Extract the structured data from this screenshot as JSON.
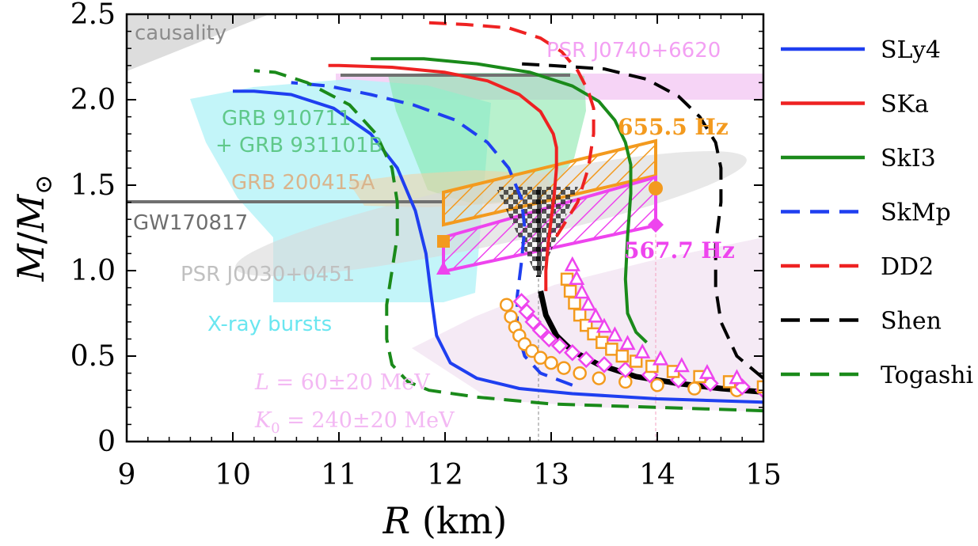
{
  "chart_data": {
    "type": "line",
    "xlabel": {
      "italic": "R",
      "rest": " (km)"
    },
    "ylabel": {
      "M": "M",
      "slash": "/",
      "sub": "⊙"
    },
    "xlim": [
      9,
      15
    ],
    "ylim": [
      0,
      2.5
    ],
    "xticks": [
      "9",
      "10",
      "11",
      "12",
      "13",
      "14",
      "15"
    ],
    "yticks": [
      "0",
      "0.5",
      "1.0",
      "1.5",
      "2.0",
      "2.5"
    ],
    "series": [
      {
        "name": "SLy4",
        "color": "#1f3ff0",
        "dash": "solid",
        "x": [
          15.0,
          14.0,
          13.2,
          12.7,
          12.3,
          12.05,
          11.92,
          11.87,
          11.82,
          11.72,
          11.55,
          11.3,
          10.95,
          10.55,
          10.2,
          10.05,
          10.0
        ],
        "y": [
          0.23,
          0.25,
          0.28,
          0.31,
          0.37,
          0.46,
          0.62,
          0.85,
          1.1,
          1.35,
          1.6,
          1.8,
          1.95,
          2.03,
          2.05,
          2.05,
          2.05
        ]
      },
      {
        "name": "SKa",
        "color": "#ee2222",
        "dash": "solid",
        "x": [
          12.95,
          12.95,
          12.97,
          13.0,
          13.03,
          13.05,
          13.05,
          13.02,
          12.9,
          12.7,
          12.4,
          12.0,
          11.5,
          11.0,
          10.9
        ],
        "y": [
          0.88,
          1.0,
          1.15,
          1.3,
          1.45,
          1.6,
          1.72,
          1.8,
          1.93,
          2.03,
          2.11,
          2.16,
          2.19,
          2.2,
          2.2
        ]
      },
      {
        "name": "SkI3",
        "color": "#1a8a1a",
        "dash": "solid",
        "x": [
          13.9,
          13.8,
          13.72,
          13.7,
          13.72,
          13.75,
          13.75,
          13.7,
          13.6,
          13.45,
          13.2,
          12.8,
          12.3,
          11.8,
          11.3
        ],
        "y": [
          0.58,
          0.64,
          0.75,
          0.95,
          1.2,
          1.45,
          1.62,
          1.75,
          1.88,
          1.99,
          2.08,
          2.16,
          2.21,
          2.24,
          2.24
        ]
      },
      {
        "name": "SkMp",
        "color": "#1f3ff0",
        "dash": "dash",
        "x": [
          13.2,
          12.9,
          12.75,
          12.68,
          12.68,
          12.72,
          12.75,
          12.72,
          12.6,
          12.4,
          12.1,
          11.7,
          11.3,
          10.9,
          10.55
        ],
        "y": [
          0.33,
          0.4,
          0.5,
          0.65,
          0.85,
          1.05,
          1.25,
          1.42,
          1.6,
          1.75,
          1.88,
          1.97,
          2.03,
          2.08,
          2.1
        ]
      },
      {
        "name": "DD2",
        "color": "#ee2222",
        "dash": "dash",
        "x": [
          13.05,
          13.25,
          13.35,
          13.4,
          13.4,
          13.35,
          13.25,
          13.1,
          12.9,
          12.6,
          12.2,
          11.85
        ],
        "y": [
          1.2,
          1.4,
          1.6,
          1.8,
          1.95,
          2.05,
          2.17,
          2.28,
          2.36,
          2.42,
          2.44,
          2.45
        ]
      },
      {
        "name": "Shen",
        "color": "#000000",
        "dash": "dash",
        "x": [
          15.0,
          14.75,
          14.6,
          14.55,
          14.55,
          14.6,
          14.6,
          14.55,
          14.4,
          14.2,
          13.9,
          13.5,
          13.0,
          12.7
        ],
        "y": [
          0.37,
          0.5,
          0.7,
          0.9,
          1.15,
          1.4,
          1.6,
          1.75,
          1.9,
          2.02,
          2.12,
          2.18,
          2.2,
          2.21
        ]
      },
      {
        "name": "Togashi",
        "color": "#1a8a1a",
        "dash": "dash",
        "x": [
          15.0,
          14.0,
          13.0,
          12.3,
          11.85,
          11.65,
          11.5,
          11.45,
          11.45,
          11.5,
          11.55,
          11.55,
          11.5,
          11.35,
          11.1,
          10.7,
          10.4,
          10.2
        ],
        "y": [
          0.18,
          0.2,
          0.22,
          0.26,
          0.3,
          0.35,
          0.45,
          0.6,
          0.8,
          1.0,
          1.2,
          1.4,
          1.6,
          1.8,
          1.97,
          2.1,
          2.16,
          2.17
        ]
      }
    ],
    "legend": [
      "SLy4",
      "SKa",
      "SkI3",
      "SkMp",
      "DD2",
      "Shen",
      "Togashi"
    ],
    "legend_position": "right",
    "annotations": {
      "causality": "causality",
      "psr0740": "PSR J0740+6620",
      "grb1": "GRB 910711",
      "grb2": "+ GRB 931101B",
      "grb3": "GRB 200415A",
      "gw": "GW170817",
      "psr0030": "PSR J0030+0451",
      "xray": "X-ray bursts",
      "L_var": "L",
      "L_rest": " = 60±20 MeV",
      "K_var": "K",
      "K_sub": "0",
      "K_rest": " = 240±20 MeV",
      "freq1": "655.5 Hz",
      "freq2": "567.7 Hz"
    },
    "shaded_regions": {
      "gw170817_mass": 1.4,
      "psr0740_mass_band": [
        2.0,
        2.15
      ],
      "hatched_655": {
        "r": [
          12,
          14
        ],
        "m_left": [
          1.27,
          1.46
        ],
        "m_right": [
          1.5,
          1.78
        ]
      },
      "hatched_567": {
        "r": [
          12,
          14
        ],
        "m_left": [
          1.0,
          1.2
        ],
        "m_right": [
          1.27,
          1.54
        ]
      }
    },
    "markers": {
      "orange_circles": {
        "x": [
          12.58,
          12.62,
          12.66,
          12.7,
          12.75,
          12.82,
          12.9,
          13.0,
          13.12,
          13.27,
          13.45,
          13.7,
          14.0,
          14.35,
          14.75
        ],
        "y": [
          0.8,
          0.73,
          0.67,
          0.62,
          0.57,
          0.53,
          0.49,
          0.46,
          0.43,
          0.4,
          0.37,
          0.35,
          0.33,
          0.31,
          0.3
        ]
      },
      "orange_squares": {
        "x": [
          13.15,
          13.18,
          13.22,
          13.27,
          13.33,
          13.4,
          13.48,
          13.57,
          13.67,
          13.8,
          13.95,
          14.15,
          14.4,
          14.68,
          15.0
        ],
        "y": [
          0.95,
          0.88,
          0.81,
          0.74,
          0.68,
          0.63,
          0.58,
          0.54,
          0.5,
          0.47,
          0.44,
          0.41,
          0.38,
          0.35,
          0.32
        ]
      },
      "magenta_diamonds": {
        "x": [
          12.72,
          12.77,
          12.83,
          12.9,
          12.98,
          13.08,
          13.2,
          13.33,
          13.5,
          13.7,
          13.93,
          14.2,
          14.5,
          14.8,
          15.0
        ],
        "y": [
          0.82,
          0.76,
          0.7,
          0.65,
          0.6,
          0.56,
          0.52,
          0.48,
          0.45,
          0.42,
          0.39,
          0.36,
          0.34,
          0.32,
          0.3
        ]
      },
      "magenta_triangles": {
        "x": [
          13.2,
          13.24,
          13.29,
          13.35,
          13.42,
          13.5,
          13.6,
          13.72,
          13.86,
          14.03,
          14.23,
          14.47,
          14.75
        ],
        "y": [
          1.03,
          0.95,
          0.87,
          0.8,
          0.73,
          0.67,
          0.62,
          0.57,
          0.52,
          0.48,
          0.44,
          0.4,
          0.37
        ]
      }
    }
  }
}
